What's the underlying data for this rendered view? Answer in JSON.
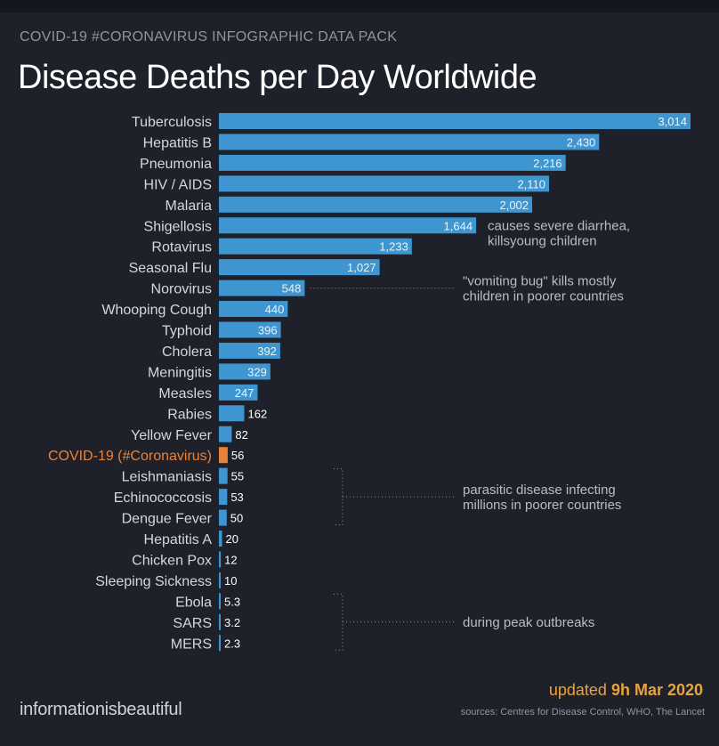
{
  "header": {
    "kicker": "COVID-19 #CORONAVIRUS INFOGRAPHIC DATA PACK",
    "title": "Disease Deaths per Day Worldwide"
  },
  "footer": {
    "brand": "informationisbeautiful",
    "updated_prefix": "updated ",
    "updated_date": "9h Mar 2020",
    "sources": "sources: Centres for Disease Control, WHO, The Lancet"
  },
  "colors": {
    "background": "#1e2129",
    "bar": "#3f95cf",
    "highlight": "#e8833a",
    "label": "#d4d7dc",
    "annotation": "#b9bdc3"
  },
  "chart_data": {
    "type": "bar",
    "orientation": "horizontal",
    "title": "Disease Deaths per Day Worldwide",
    "xlim": [
      0,
      3014
    ],
    "grid": false,
    "legend": "none",
    "highlight_category": "COVID-19 (#Coronavirus)",
    "categories": [
      "Tuberculosis",
      "Hepatitis B",
      "Pneumonia",
      "HIV / AIDS",
      "Malaria",
      "Shigellosis",
      "Rotavirus",
      "Seasonal Flu",
      "Norovirus",
      "Whooping Cough",
      "Typhoid",
      "Cholera",
      "Meningitis",
      "Measles",
      "Rabies",
      "Yellow Fever",
      "COVID-19 (#Coronavirus)",
      "Leishmaniasis",
      "Echinococcosis",
      "Dengue Fever",
      "Hepatitis A",
      "Chicken Pox",
      "Sleeping Sickness",
      "Ebola",
      "SARS",
      "MERS"
    ],
    "values": [
      3014,
      2430,
      2216,
      2110,
      2002,
      1644,
      1233,
      1027,
      548,
      440,
      396,
      392,
      329,
      247,
      162,
      82,
      56,
      55,
      53,
      50,
      20,
      12,
      10,
      5.3,
      3.2,
      2.3
    ],
    "value_labels": [
      "3,014",
      "2,430",
      "2,216",
      "2,110",
      "2,002",
      "1,644",
      "1,233",
      "1,027",
      "548",
      "440",
      "396",
      "392",
      "329",
      "247",
      "162",
      "82",
      "56",
      "55",
      "53",
      "50",
      "20",
      "12",
      "10",
      "5.3",
      "3.2",
      "2.3"
    ],
    "annotations": [
      {
        "category_index": 5,
        "lines": [
          "causes severe diarrhea,",
          "killsyoung children"
        ]
      },
      {
        "category_index": 8,
        "lines": [
          "\"vomiting bug\" kills mostly",
          "children in poorer countries"
        ]
      },
      {
        "span": [
          17,
          19
        ],
        "lines": [
          "parasitic disease infecting",
          "millions in poorer countries"
        ]
      },
      {
        "span": [
          23,
          25
        ],
        "lines": [
          "during peak outbreaks"
        ]
      }
    ]
  }
}
